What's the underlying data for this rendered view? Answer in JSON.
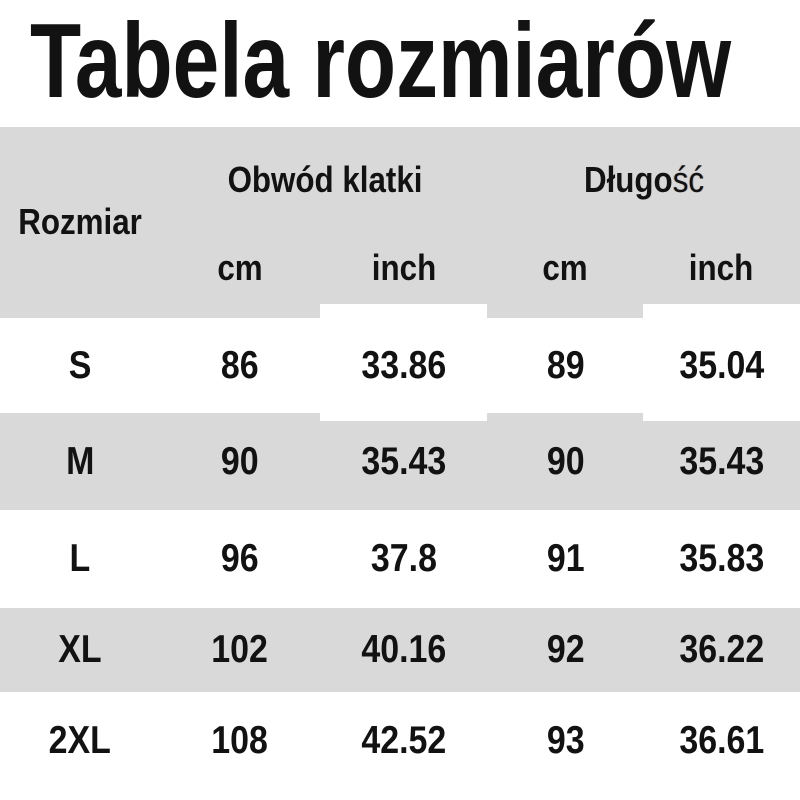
{
  "title": "Tabela rozmiarów",
  "colors": {
    "band_gray": "#d9d9d9",
    "background": "#ffffff",
    "text": "#121212"
  },
  "table": {
    "row_header_label": "Rozmiar",
    "group_chest_label": "Obwód klatki",
    "group_length": {
      "main": "Długo",
      "tail": "ść"
    },
    "units": [
      "cm",
      "inch",
      "cm",
      "inch"
    ],
    "rows": [
      {
        "size": "S",
        "chest_cm": "86",
        "chest_inch": "33.86",
        "length_cm": "89",
        "length_inch": "35.04"
      },
      {
        "size": "M",
        "chest_cm": "90",
        "chest_inch": "35.43",
        "length_cm": "90",
        "length_inch": "35.43"
      },
      {
        "size": "L",
        "chest_cm": "96",
        "chest_inch": "37.8",
        "length_cm": "91",
        "length_inch": "35.83"
      },
      {
        "size": "XL",
        "chest_cm": "102",
        "chest_inch": "40.16",
        "length_cm": "92",
        "length_inch": "36.22"
      },
      {
        "size": "2XL",
        "chest_cm": "108",
        "chest_inch": "42.52",
        "length_cm": "93",
        "length_inch": "36.61"
      }
    ]
  }
}
